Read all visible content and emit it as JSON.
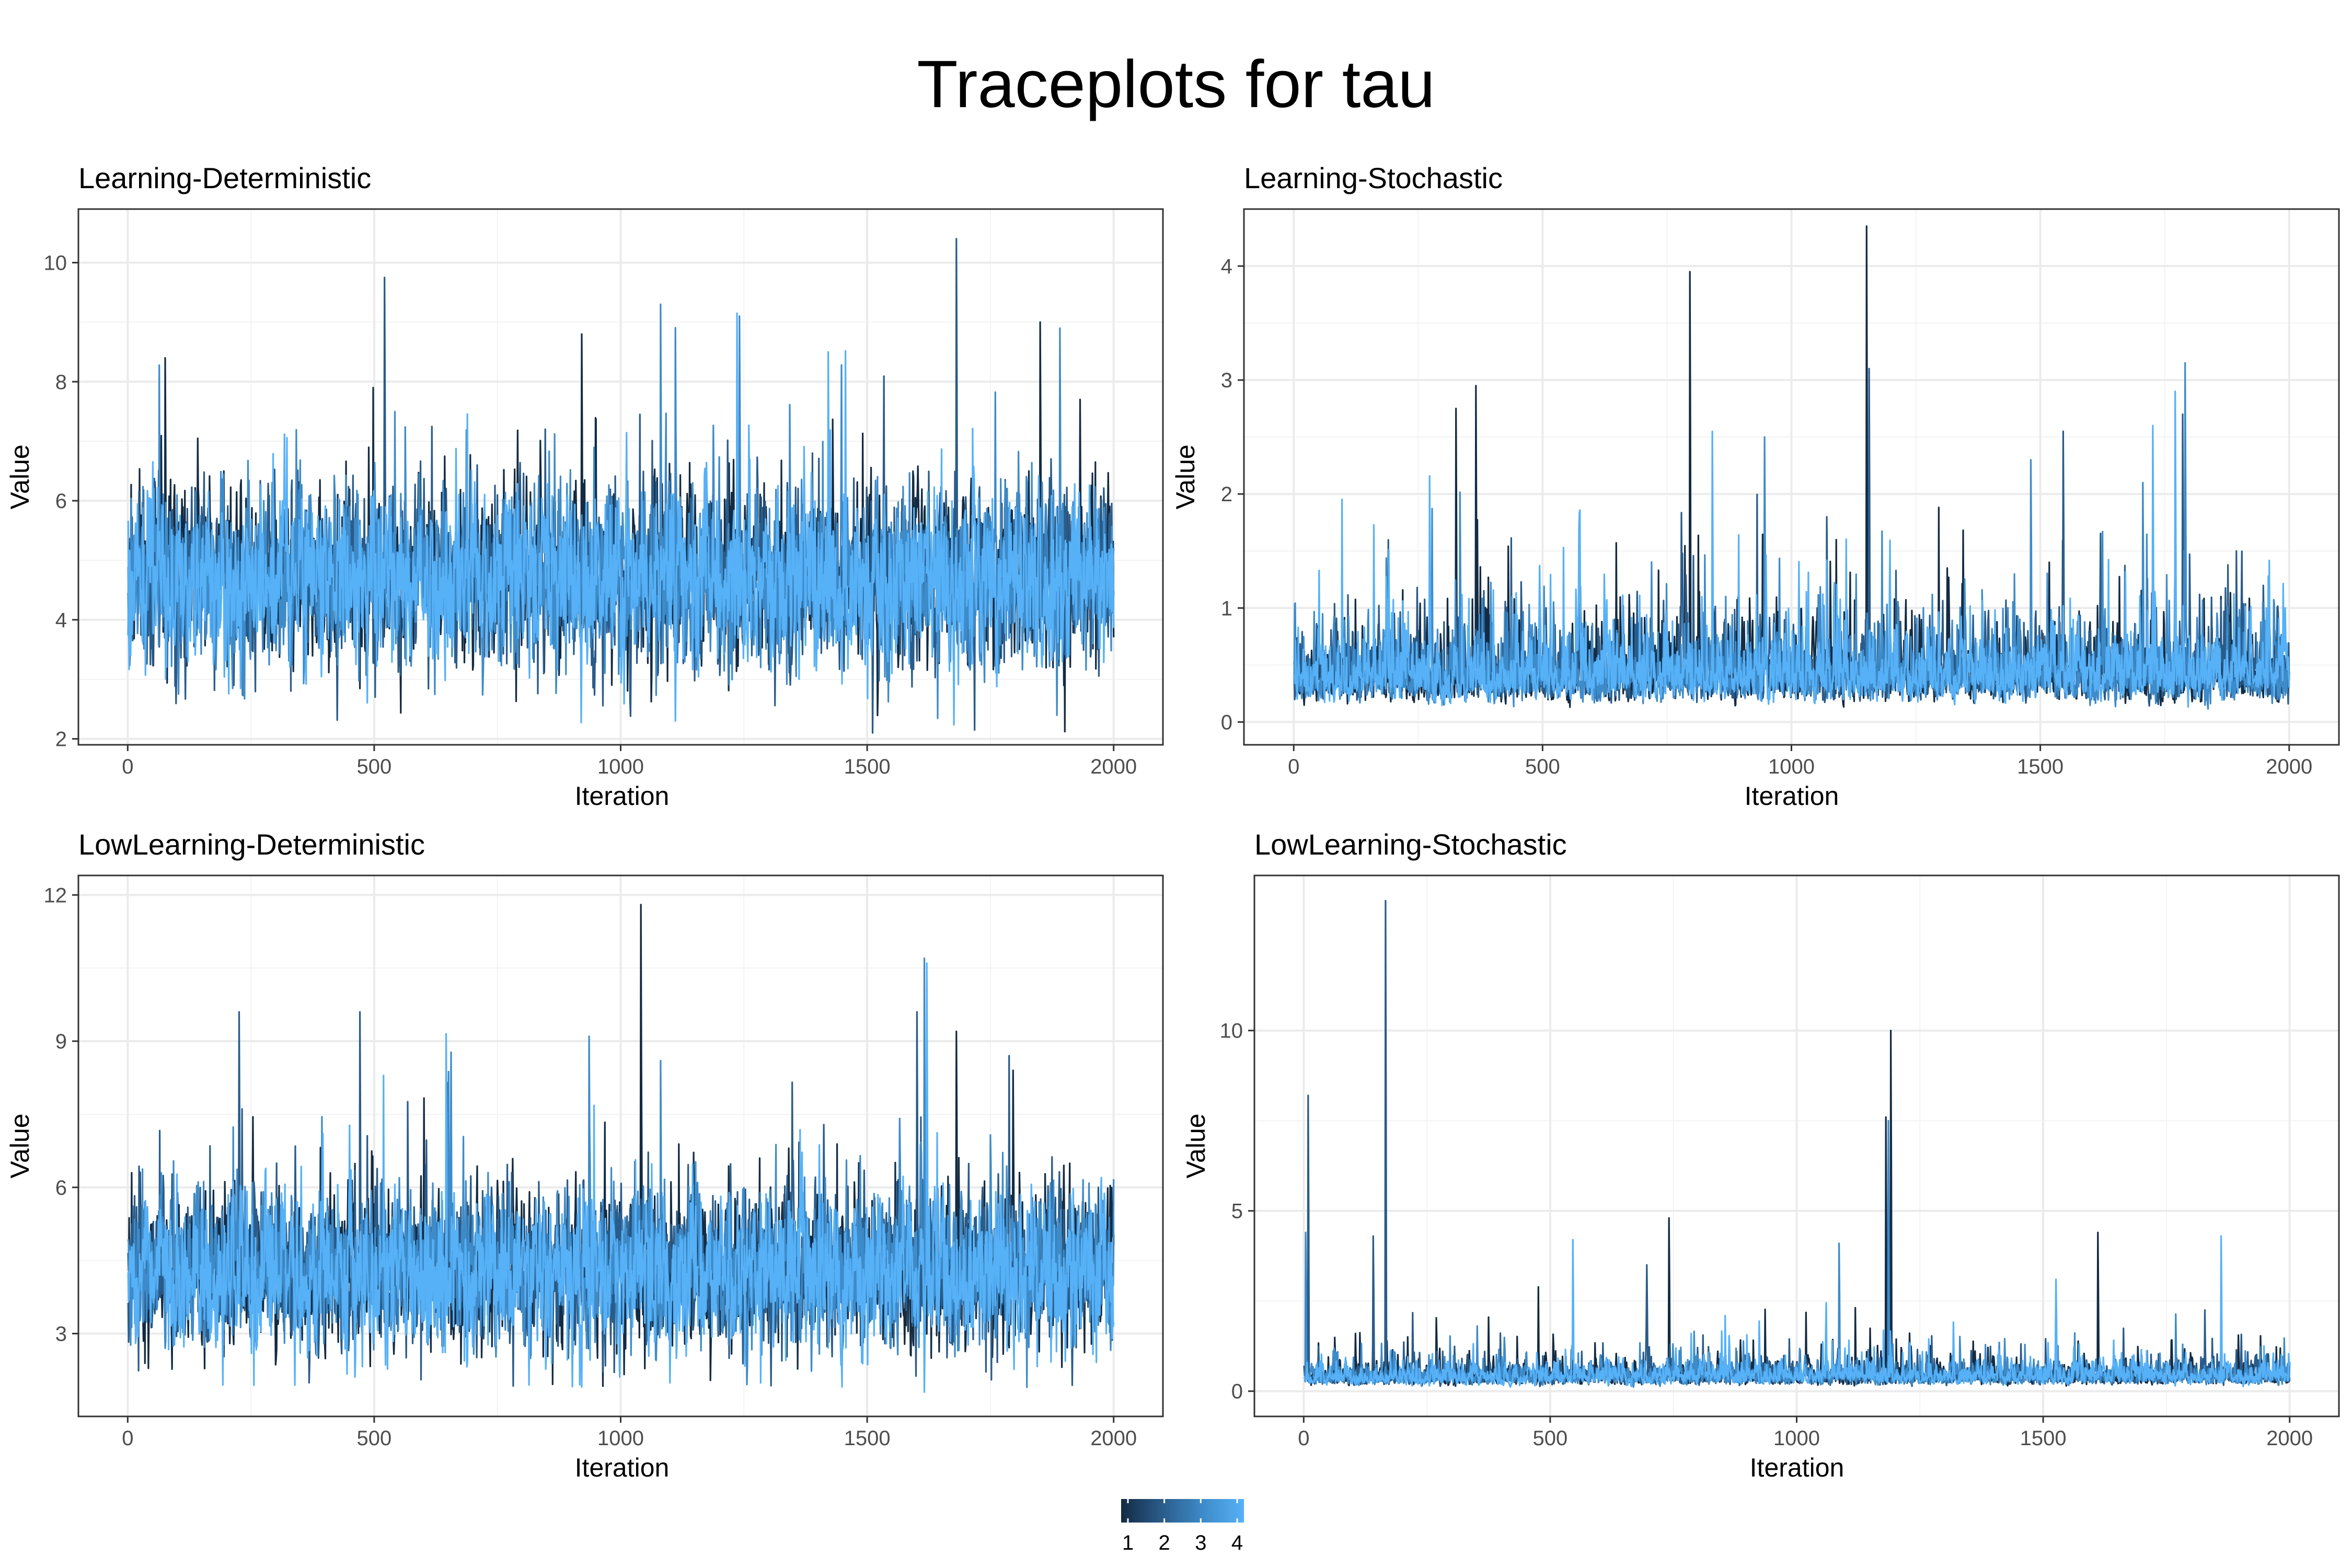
{
  "title": "Traceplots for tau",
  "colors": {
    "chain_1": "#132B43",
    "chain_2": "#2A5C8A",
    "chain_3": "#3E8BC9",
    "chain_4": "#56B1F7",
    "grid": "#EBEBEB",
    "border": "#333333"
  },
  "legend": {
    "labels": [
      "1",
      "2",
      "3",
      "4"
    ],
    "type": "gradient",
    "placement": "bottom"
  },
  "chart_data": [
    {
      "type": "line",
      "title": "Learning-Deterministic",
      "xlabel": "Iteration",
      "ylabel": "Value",
      "xlim": [
        -100,
        2100
      ],
      "ylim": [
        1.9,
        10.9
      ],
      "xticks": [
        0,
        500,
        1000,
        1500,
        2000
      ],
      "yticks": [
        2,
        4,
        6,
        8,
        10
      ],
      "ytick_labels": [
        "2",
        "4",
        "6",
        "8",
        "10"
      ],
      "grid": true,
      "n_iterations": 2000,
      "series": [
        {
          "name": "1",
          "mean": 4.75,
          "spread": 0.95,
          "floor": 2.1,
          "spikes": [
            [
              920,
              8.8
            ],
            [
              1850,
              9.0
            ],
            [
              75,
              8.4
            ]
          ]
        },
        {
          "name": "2",
          "mean": 4.7,
          "spread": 0.95,
          "floor": 2.1,
          "spikes": [
            [
              520,
              9.75
            ],
            [
              1680,
              10.4
            ],
            [
              1510,
              2.1
            ]
          ]
        },
        {
          "name": "3",
          "mean": 4.7,
          "spread": 0.95,
          "floor": 2.1,
          "spikes": [
            [
              1080,
              9.3
            ],
            [
              1240,
              9.1
            ],
            [
              1890,
              8.9
            ]
          ]
        },
        {
          "name": "4",
          "mean": 4.65,
          "spread": 0.9,
          "floor": 2.1,
          "spikes": [
            [
              1235,
              9.15
            ],
            [
              1420,
              8.5
            ],
            [
              1110,
              2.3
            ]
          ]
        }
      ]
    },
    {
      "type": "line",
      "title": "Learning-Stochastic",
      "xlabel": "Iteration",
      "ylabel": "Value",
      "xlim": [
        -100,
        2100
      ],
      "ylim": [
        -0.2,
        4.5
      ],
      "xticks": [
        0,
        500,
        1000,
        1500,
        2000
      ],
      "yticks": [
        0,
        1,
        2,
        3,
        4
      ],
      "ytick_labels": [
        "0",
        "1",
        "2",
        "3",
        "4"
      ],
      "grid": true,
      "n_iterations": 2000,
      "series": [
        {
          "name": "1",
          "mean": 0.45,
          "spread": 0.22,
          "floor": 0.02,
          "spikes": [
            [
              325,
              2.75
            ],
            [
              365,
              2.95
            ],
            [
              795,
              3.95
            ],
            [
              1150,
              4.35
            ]
          ]
        },
        {
          "name": "2",
          "mean": 0.45,
          "spread": 0.22,
          "floor": 0.02,
          "spikes": [
            [
              1155,
              3.1
            ],
            [
              1070,
              1.8
            ],
            [
              1545,
              2.55
            ],
            [
              1785,
              2.7
            ]
          ]
        },
        {
          "name": "3",
          "mean": 0.45,
          "spread": 0.22,
          "floor": 0.02,
          "spikes": [
            [
              945,
              2.5
            ],
            [
              1480,
              2.3
            ],
            [
              1705,
              2.1
            ],
            [
              1790,
              3.15
            ]
          ]
        },
        {
          "name": "4",
          "mean": 0.45,
          "spread": 0.22,
          "floor": 0.02,
          "spikes": [
            [
              840,
              2.55
            ],
            [
              1725,
              2.6
            ],
            [
              1770,
              2.9
            ]
          ]
        }
      ]
    },
    {
      "type": "line",
      "title": "LowLearning-Deterministic",
      "xlabel": "Iteration",
      "ylabel": "Value",
      "xlim": [
        -100,
        2100
      ],
      "ylim": [
        1.3,
        12.4
      ],
      "xticks": [
        0,
        500,
        1000,
        1500,
        2000
      ],
      "yticks": [
        3,
        6,
        9,
        12
      ],
      "ytick_labels": [
        "3",
        "6",
        "9",
        "12"
      ],
      "grid": true,
      "n_iterations": 2000,
      "series": [
        {
          "name": "1",
          "mean": 4.3,
          "spread": 1.05,
          "floor": 1.9,
          "spikes": [
            [
              1040,
              11.8
            ],
            [
              1680,
              9.2
            ],
            [
              1795,
              8.4
            ]
          ]
        },
        {
          "name": "2",
          "mean": 4.3,
          "spread": 1.05,
          "floor": 1.9,
          "spikes": [
            [
              470,
              9.6
            ],
            [
              1600,
              9.6
            ],
            [
              225,
              9.6
            ]
          ]
        },
        {
          "name": "3",
          "mean": 4.3,
          "spread": 1.05,
          "floor": 1.9,
          "spikes": [
            [
              1615,
              10.7
            ],
            [
              935,
              9.1
            ],
            [
              1080,
              8.6
            ]
          ]
        },
        {
          "name": "4",
          "mean": 4.2,
          "spread": 1.0,
          "floor": 1.9,
          "spikes": [
            [
              645,
              9.15
            ],
            [
              1620,
              10.6
            ],
            [
              1615,
              1.8
            ]
          ]
        }
      ]
    },
    {
      "type": "line",
      "title": "LowLearning-Stochastic",
      "xlabel": "Iteration",
      "ylabel": "Value",
      "xlim": [
        -100,
        2100
      ],
      "ylim": [
        -0.7,
        14.3
      ],
      "xticks": [
        0,
        500,
        1000,
        1500,
        2000
      ],
      "yticks": [
        0,
        5,
        10
      ],
      "ytick_labels": [
        "0",
        "5",
        "10"
      ],
      "grid": true,
      "n_iterations": 2000,
      "series": [
        {
          "name": "1",
          "mean": 0.45,
          "spread": 0.3,
          "floor": 0.02,
          "spikes": [
            [
              740,
              4.8
            ],
            [
              1180,
              7.6
            ],
            [
              1190,
              10.0
            ],
            [
              1610,
              4.4
            ]
          ]
        },
        {
          "name": "2",
          "mean": 0.45,
          "spread": 0.3,
          "floor": 0.02,
          "spikes": [
            [
              8,
              8.2
            ],
            [
              165,
              13.6
            ],
            [
              140,
              4.3
            ],
            [
              695,
              3.5
            ]
          ]
        },
        {
          "name": "3",
          "mean": 0.45,
          "spread": 0.3,
          "floor": 0.02,
          "spikes": [
            [
              1085,
              4.1
            ],
            [
              1185,
              7.5
            ],
            [
              3,
              4.4
            ]
          ]
        },
        {
          "name": "4",
          "mean": 0.45,
          "spread": 0.3,
          "floor": 0.02,
          "spikes": [
            [
              1860,
              4.3
            ],
            [
              545,
              4.2
            ],
            [
              1525,
              3.1
            ]
          ]
        }
      ]
    }
  ]
}
